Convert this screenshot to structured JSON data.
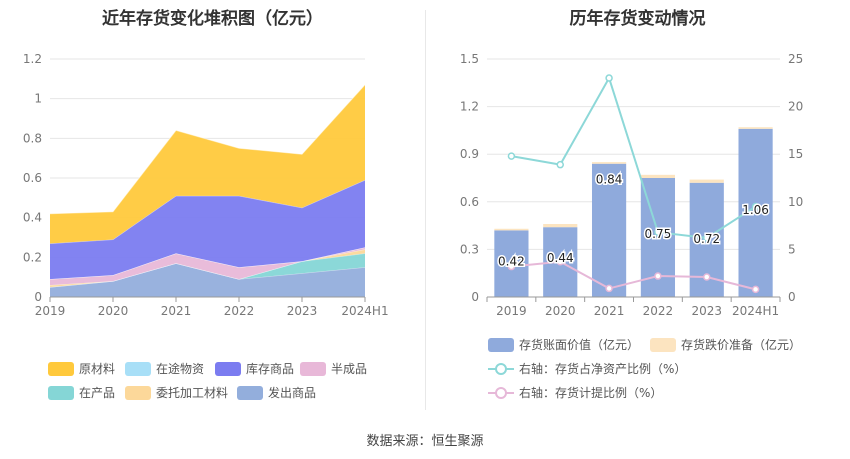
{
  "chart_data": [
    {
      "type": "area",
      "title": "近年存货变化堆积图（亿元）",
      "categories": [
        "2019",
        "2020",
        "2021",
        "2022",
        "2023",
        "2024H1"
      ],
      "ylim": [
        0,
        1.2
      ],
      "yticks": [
        "0",
        "0.2",
        "0.4",
        "0.6",
        "0.8",
        "1",
        "1.2"
      ],
      "stack_order": [
        "发出商品",
        "在产品",
        "委托加工材料",
        "半成品",
        "在途物资",
        "库存商品",
        "原材料"
      ],
      "series": [
        {
          "name": "原材料",
          "color": "#FFC93C",
          "values": [
            0.15,
            0.14,
            0.33,
            0.24,
            0.27,
            0.48
          ]
        },
        {
          "name": "在途物资",
          "color": "#A8DFF7",
          "values": [
            0.0,
            0.0,
            0.0,
            0.0,
            0.0,
            0.0
          ]
        },
        {
          "name": "库存商品",
          "color": "#7B7CF0",
          "values": [
            0.18,
            0.18,
            0.29,
            0.36,
            0.27,
            0.34
          ]
        },
        {
          "name": "半成品",
          "color": "#E8B8D8",
          "values": [
            0.03,
            0.03,
            0.05,
            0.06,
            0.0,
            0.01
          ]
        },
        {
          "name": "在产品",
          "color": "#85D6D6",
          "values": [
            0.0,
            0.0,
            0.0,
            0.0,
            0.06,
            0.07
          ]
        },
        {
          "name": "委托加工材料",
          "color": "#FCD89A",
          "values": [
            0.01,
            0.0,
            0.0,
            0.0,
            0.0,
            0.02
          ]
        },
        {
          "name": "发出商品",
          "color": "#93AEDC",
          "values": [
            0.05,
            0.08,
            0.17,
            0.09,
            0.12,
            0.15
          ]
        }
      ],
      "legend": [
        "原材料",
        "在途物资",
        "库存商品",
        "半成品",
        "在产品",
        "委托加工材料",
        "发出商品"
      ]
    },
    {
      "type": "bar+line",
      "title": "历年存货变动情况",
      "categories": [
        "2019",
        "2020",
        "2021",
        "2022",
        "2023",
        "2024H1"
      ],
      "ylim_left": [
        0,
        1.5
      ],
      "yticks_left": [
        "0",
        "0.3",
        "0.6",
        "0.9",
        "1.2",
        "1.5"
      ],
      "ylim_right": [
        0,
        25
      ],
      "yticks_right": [
        "0",
        "5",
        "10",
        "15",
        "20",
        "25"
      ],
      "series": [
        {
          "name": "存货账面价值（亿元）",
          "kind": "bar",
          "color": "#8FAADC",
          "values": [
            0.42,
            0.44,
            0.84,
            0.75,
            0.72,
            1.06
          ],
          "labels": [
            "0.42",
            "0.44",
            "0.84",
            "0.75",
            "0.72",
            "1.06"
          ]
        },
        {
          "name": "存货跌价准备（亿元）",
          "kind": "bar-stack",
          "color": "#FCE4C0",
          "values": [
            0.01,
            0.02,
            0.01,
            0.02,
            0.02,
            0.01
          ]
        },
        {
          "name": "右轴：存货占净资产比例（%）",
          "kind": "line",
          "axis": "right",
          "color": "#8DD8D8",
          "values": [
            14.8,
            13.9,
            23.0,
            6.8,
            6.2,
            9.5
          ]
        },
        {
          "name": "右轴：存货计提比例（%）",
          "kind": "line",
          "axis": "right",
          "color": "#E6B8D8",
          "values": [
            3.2,
            3.7,
            0.9,
            2.2,
            2.1,
            0.8
          ]
        }
      ]
    }
  ],
  "source": "数据来源：恒生聚源"
}
